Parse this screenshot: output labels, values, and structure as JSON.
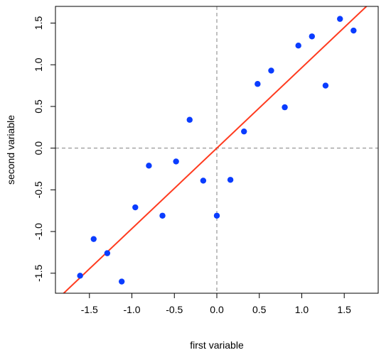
{
  "chart_data": {
    "type": "scatter",
    "title": "",
    "xlabel": "first variable",
    "ylabel": "second variable",
    "xlim": [
      -1.9,
      1.9
    ],
    "ylim": [
      -1.74,
      1.7
    ],
    "x_ticks": [
      -1.5,
      -1.0,
      -0.5,
      0.0,
      0.5,
      1.0,
      1.5
    ],
    "x_tick_labels": [
      "-1.5",
      "-1.0",
      "-0.5",
      "0.0",
      "0.5",
      "1.0",
      "1.5"
    ],
    "y_ticks": [
      -1.5,
      -1.0,
      -0.5,
      0.0,
      0.5,
      1.0,
      1.5
    ],
    "y_tick_labels": [
      "-1.5",
      "-1.0",
      "-0.5",
      "0.0",
      "0.5",
      "1.0",
      "1.5"
    ],
    "grid": false,
    "reference_lines": {
      "x": 0.0,
      "y": 0.0,
      "style": "dashed",
      "color": "#808080"
    },
    "points": [
      {
        "x": -1.61,
        "y": -1.53
      },
      {
        "x": -1.45,
        "y": -1.09
      },
      {
        "x": -1.29,
        "y": -1.26
      },
      {
        "x": -1.12,
        "y": -1.6
      },
      {
        "x": -0.96,
        "y": -0.71
      },
      {
        "x": -0.8,
        "y": -0.21
      },
      {
        "x": -0.64,
        "y": -0.81
      },
      {
        "x": -0.48,
        "y": -0.16
      },
      {
        "x": -0.32,
        "y": 0.34
      },
      {
        "x": -0.16,
        "y": -0.39
      },
      {
        "x": 0.0,
        "y": -0.81
      },
      {
        "x": 0.16,
        "y": -0.38
      },
      {
        "x": 0.32,
        "y": 0.2
      },
      {
        "x": 0.48,
        "y": 0.77
      },
      {
        "x": 0.64,
        "y": 0.93
      },
      {
        "x": 0.8,
        "y": 0.49
      },
      {
        "x": 0.96,
        "y": 1.23
      },
      {
        "x": 1.12,
        "y": 1.34
      },
      {
        "x": 1.28,
        "y": 0.75
      },
      {
        "x": 1.45,
        "y": 1.55
      },
      {
        "x": 1.61,
        "y": 1.41
      }
    ],
    "fit_line": {
      "intercept": 0.0,
      "slope": 0.965,
      "color": "#ff3b1f"
    },
    "point_color": "#0a3cff",
    "frame_color": "#000000"
  }
}
